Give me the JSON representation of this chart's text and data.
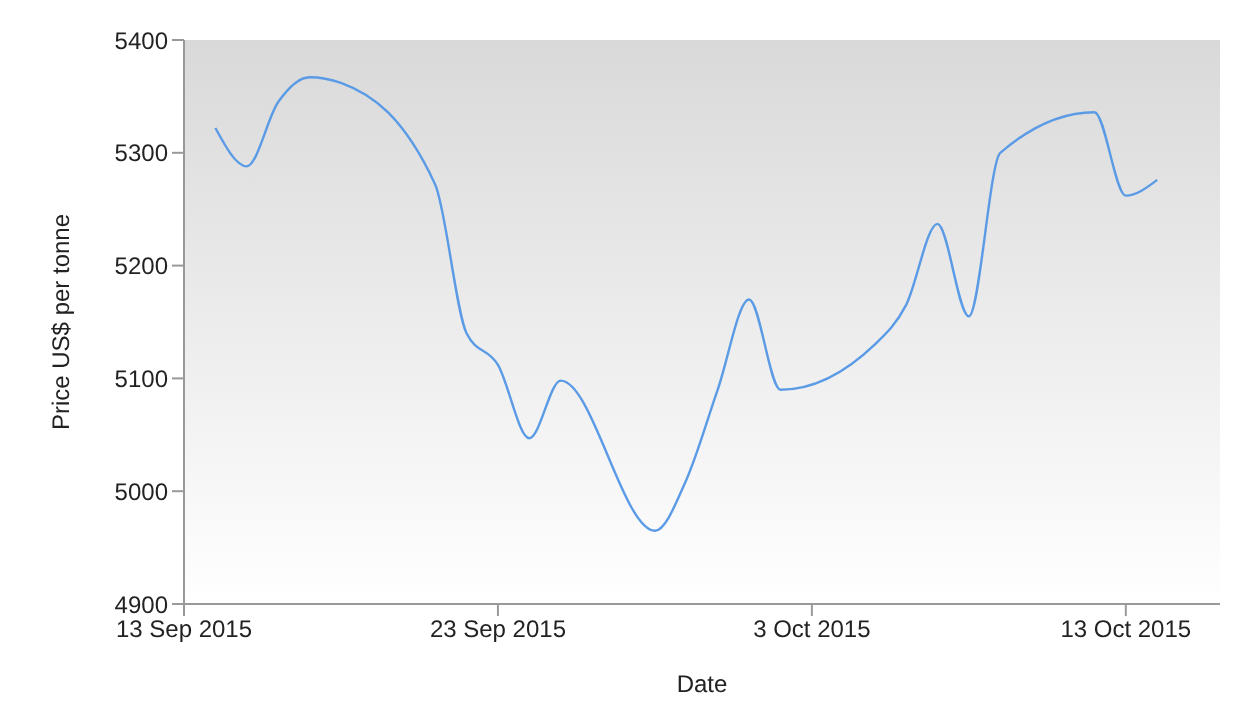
{
  "chart_data": {
    "type": "line",
    "xlabel": "Date",
    "ylabel": "Price US$ per tonne",
    "x": [
      "2015-09-14",
      "2015-09-15",
      "2015-09-16",
      "2015-09-17",
      "2015-09-18",
      "2015-09-21",
      "2015-09-22",
      "2015-09-23",
      "2015-09-24",
      "2015-09-25",
      "2015-09-28",
      "2015-09-29",
      "2015-09-30",
      "2015-10-01",
      "2015-10-02",
      "2015-10-05",
      "2015-10-06",
      "2015-10-07",
      "2015-10-08",
      "2015-10-09",
      "2015-10-12",
      "2015-10-13",
      "2015-10-14"
    ],
    "series": [
      {
        "color": "#5b9be6",
        "values": [
          5322,
          5288,
          5345,
          5367,
          5362,
          5272,
          5140,
          5112,
          5047,
          5098,
          4965,
          5010,
          5090,
          5170,
          5090,
          5130,
          5165,
          5237,
          5155,
          5300,
          5336,
          5262,
          5276
        ]
      }
    ],
    "xlim": [
      "2015-09-13",
      "2015-10-16"
    ],
    "xticks": [
      {
        "value": "2015-09-13",
        "label": "13 Sep 2015"
      },
      {
        "value": "2015-09-23",
        "label": "23 Sep 2015"
      },
      {
        "value": "2015-10-03",
        "label": "3 Oct 2015"
      },
      {
        "value": "2015-10-13",
        "label": "13 Oct 2015"
      }
    ],
    "ylim": [
      4900,
      5400
    ],
    "yticks": [
      4900,
      5000,
      5100,
      5200,
      5300,
      5400
    ],
    "marker": "none",
    "line_style": "solid",
    "legend": false
  }
}
